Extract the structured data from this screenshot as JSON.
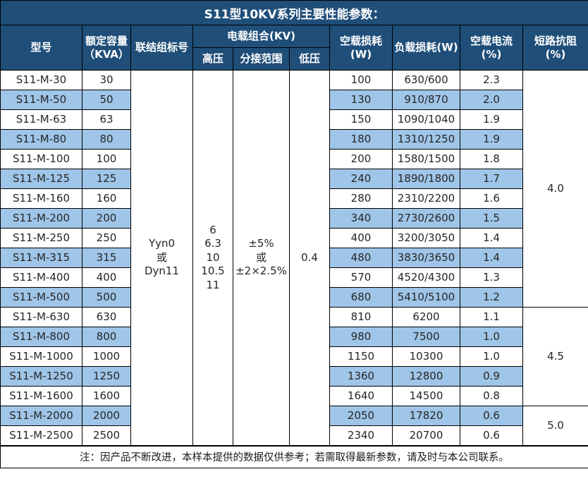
{
  "title": "S11型10KV系列主要性能参数：",
  "columns": {
    "model": "型号",
    "capacity_line1": "额定容量",
    "capacity_line2": "（KVA）",
    "connection": "联结组标号",
    "voltage_group": "电载组合(KV)",
    "high_voltage": "高压",
    "tap_range": "分接范围",
    "low_voltage": "低压",
    "no_load_loss": "空载损耗(W)",
    "load_loss": "负载损耗(W)",
    "no_load_current": "空载电流(%)",
    "impedance": "短路抗阻(%)"
  },
  "merged": {
    "connection_lines": [
      "Yyn0",
      "或",
      "Dyn11"
    ],
    "high_voltage_lines": [
      "6",
      "6.3",
      "10",
      "10.5",
      "11"
    ],
    "tap_range_lines": [
      "±5%",
      "或",
      "±2×2.5%"
    ],
    "low_voltage": "0.4",
    "impedance_groups": [
      {
        "value": "4.0",
        "rowspan": 12
      },
      {
        "value": "4.5",
        "rowspan": 5
      },
      {
        "value": "5.0",
        "rowspan": 2
      }
    ]
  },
  "rows": [
    {
      "model": "S11-M-30",
      "capacity": "30",
      "no_load_loss": "100",
      "load_loss": "630/600",
      "no_load_current": "2.3"
    },
    {
      "model": "S11-M-50",
      "capacity": "50",
      "no_load_loss": "130",
      "load_loss": "910/870",
      "no_load_current": "2.0"
    },
    {
      "model": "S11-M-63",
      "capacity": "63",
      "no_load_loss": "150",
      "load_loss": "1090/1040",
      "no_load_current": "1.9"
    },
    {
      "model": "S11-M-80",
      "capacity": "80",
      "no_load_loss": "180",
      "load_loss": "1310/1250",
      "no_load_current": "1.9"
    },
    {
      "model": "S11-M-100",
      "capacity": "100",
      "no_load_loss": "200",
      "load_loss": "1580/1500",
      "no_load_current": "1.8"
    },
    {
      "model": "S11-M-125",
      "capacity": "125",
      "no_load_loss": "240",
      "load_loss": "1890/1800",
      "no_load_current": "1.7"
    },
    {
      "model": "S11-M-160",
      "capacity": "160",
      "no_load_loss": "280",
      "load_loss": "2310/2200",
      "no_load_current": "1.6"
    },
    {
      "model": "S11-M-200",
      "capacity": "200",
      "no_load_loss": "340",
      "load_loss": "2730/2600",
      "no_load_current": "1.5"
    },
    {
      "model": "S11-M-250",
      "capacity": "250",
      "no_load_loss": "400",
      "load_loss": "3200/3050",
      "no_load_current": "1.4"
    },
    {
      "model": "S11-M-315",
      "capacity": "315",
      "no_load_loss": "480",
      "load_loss": "3830/3650",
      "no_load_current": "1.4"
    },
    {
      "model": "S11-M-400",
      "capacity": "400",
      "no_load_loss": "570",
      "load_loss": "4520/4300",
      "no_load_current": "1.3"
    },
    {
      "model": "S11-M-500",
      "capacity": "500",
      "no_load_loss": "680",
      "load_loss": "5410/5100",
      "no_load_current": "1.2"
    },
    {
      "model": "S11-M-630",
      "capacity": "630",
      "no_load_loss": "810",
      "load_loss": "6200",
      "no_load_current": "1.1"
    },
    {
      "model": "S11-M-800",
      "capacity": "800",
      "no_load_loss": "980",
      "load_loss": "7500",
      "no_load_current": "1.0"
    },
    {
      "model": "S11-M-1000",
      "capacity": "1000",
      "no_load_loss": "1150",
      "load_loss": "10300",
      "no_load_current": "1.0"
    },
    {
      "model": "S11-M-1250",
      "capacity": "1250",
      "no_load_loss": "1360",
      "load_loss": "12800",
      "no_load_current": "0.9"
    },
    {
      "model": "S11-M-1600",
      "capacity": "1600",
      "no_load_loss": "1640",
      "load_loss": "14500",
      "no_load_current": "0.8"
    },
    {
      "model": "S11-M-2000",
      "capacity": "2000",
      "no_load_loss": "2050",
      "load_loss": "17820",
      "no_load_current": "0.6"
    },
    {
      "model": "S11-M-2500",
      "capacity": "2500",
      "no_load_loss": "2340",
      "load_loss": "20700",
      "no_load_current": "0.6"
    }
  ],
  "note": "注：因产品不断改进，本样本提供的数据仅供参考；若需取得最新参数，请及时与本公司联系。",
  "colors": {
    "header_bg": "#1f4e79",
    "band_bg": "#9fc5e8",
    "row_bg": "#ffffff",
    "border": "#000000",
    "header_text": "#ffffff",
    "body_text": "#262626"
  }
}
